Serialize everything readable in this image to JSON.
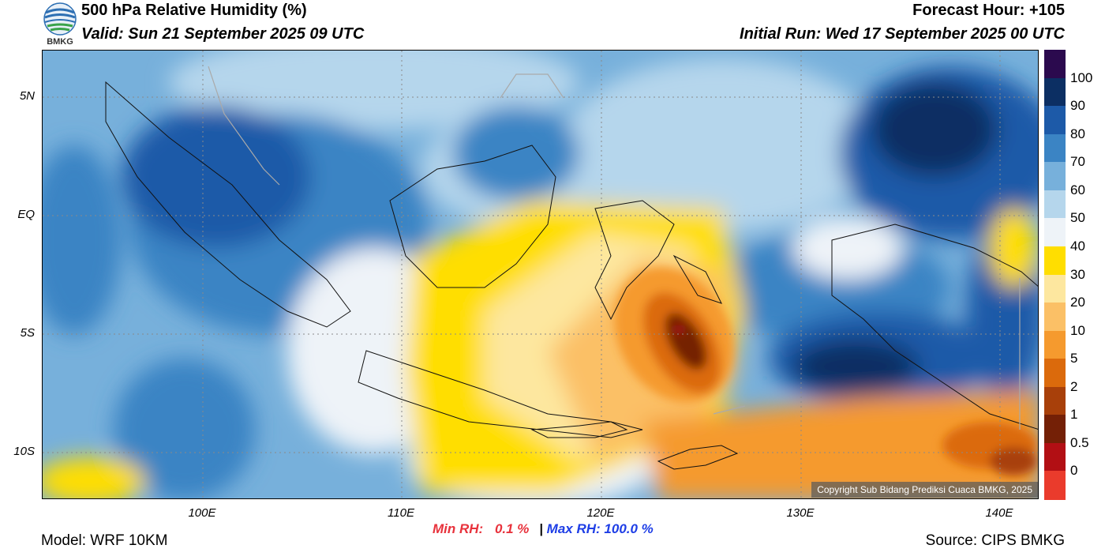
{
  "header": {
    "title": "500 hPa Relative Humidity (%)",
    "valid": "Valid: Sun 21 September 2025 09 UTC",
    "forecast_hour": "Forecast Hour: +105",
    "initial_run": "Initial Run: Wed 17 September 2025 00 UTC"
  },
  "logo": {
    "text": "BMKG",
    "icon": "bmkg-logo-icon"
  },
  "map": {
    "lat_labels": [
      "5N",
      "EQ",
      "5S",
      "10S"
    ],
    "lon_labels": [
      "100E",
      "110E",
      "120E",
      "130E",
      "140E"
    ],
    "copyright": "Copyright Sub Bidang Prediksi Cuaca BMKG, 2025"
  },
  "colorbar": {
    "labels": [
      "100",
      "90",
      "80",
      "70",
      "60",
      "50",
      "40",
      "30",
      "20",
      "10",
      "5",
      "2",
      "1",
      "0.5",
      "0"
    ],
    "colors": [
      "#2b0a4e",
      "#0c2f63",
      "#1d5aa8",
      "#3b84c4",
      "#77b0db",
      "#b5d6ec",
      "#eef3f8",
      "#ffde00",
      "#fde79f",
      "#fbc066",
      "#f59a2e",
      "#db6a0c",
      "#a8400a",
      "#742006",
      "#b20f14",
      "#ea3b2c"
    ]
  },
  "stats": {
    "min_label": "Min RH:",
    "min_value": "0.1 %",
    "separator": "|",
    "max_label": "Max RH:",
    "max_value": "100.0 %"
  },
  "footer": {
    "model": "Model: WRF 10KM",
    "source": "Source: CIPS BMKG"
  }
}
